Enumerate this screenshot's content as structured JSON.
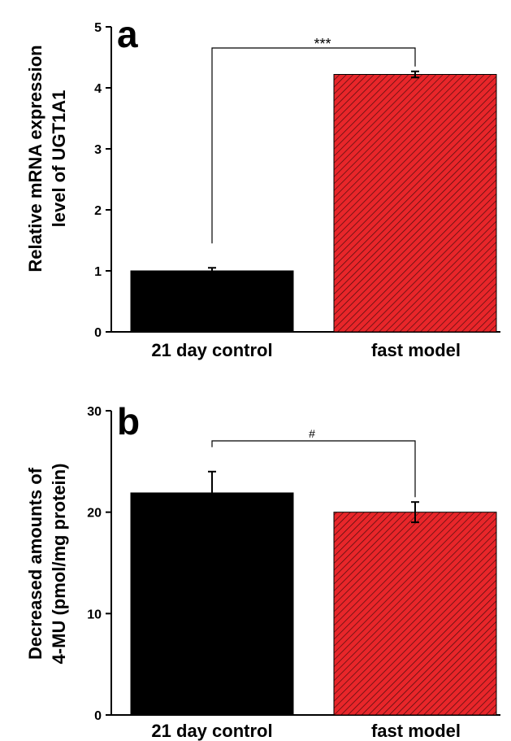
{
  "chart_data": [
    {
      "type": "bar",
      "panel_label": "a",
      "categories": [
        "21 day control",
        "fast model"
      ],
      "values": [
        1.0,
        4.22
      ],
      "errors": [
        0.05,
        0.05
      ],
      "ylabel_line1": "Relative mRNA expression",
      "ylabel_line2": "level of UGT1A1",
      "ylim": [
        0,
        5
      ],
      "yticks": [
        "0",
        "1",
        "2",
        "3",
        "4",
        "5"
      ],
      "significance": "***",
      "colors": [
        "#000000",
        "#e8262a"
      ],
      "pattern": [
        "solid",
        "diagonal-hatch"
      ]
    },
    {
      "type": "bar",
      "panel_label": "b",
      "categories": [
        "21 day control",
        "fast model"
      ],
      "values": [
        21.9,
        20.0
      ],
      "errors": [
        2.1,
        1.0
      ],
      "ylabel_line1": "Decreased amounts of",
      "ylabel_line2": "4-MU (pmol/mg protein)",
      "ylim": [
        0,
        30
      ],
      "yticks": [
        "0",
        "10",
        "20",
        "30"
      ],
      "significance": "#",
      "colors": [
        "#000000",
        "#e8262a"
      ],
      "pattern": [
        "solid",
        "diagonal-hatch"
      ]
    }
  ]
}
